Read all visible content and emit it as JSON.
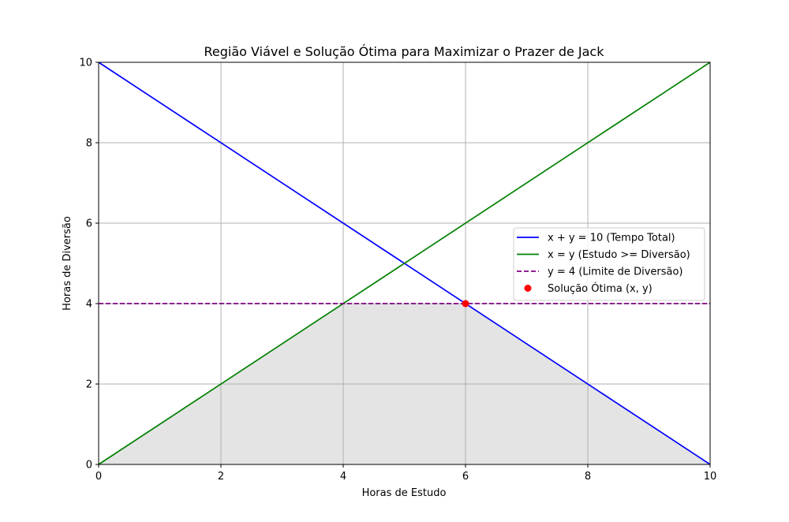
{
  "chart_data": {
    "type": "line",
    "title": "Região Viável e Solução Ótima para Maximizar o Prazer de Jack",
    "xlabel": "Horas de Estudo",
    "ylabel": "Horas de Diversão",
    "xlim": [
      0,
      10
    ],
    "ylim": [
      0,
      10
    ],
    "xticks": [
      0,
      2,
      4,
      6,
      8,
      10
    ],
    "yticks": [
      0,
      2,
      4,
      6,
      8,
      10
    ],
    "grid": true,
    "legend_position": "center-right",
    "feasible_region": {
      "color": "#e4e4e4",
      "polygon": [
        [
          0,
          0
        ],
        [
          4,
          4
        ],
        [
          6,
          4
        ],
        [
          10,
          0
        ]
      ]
    },
    "series": [
      {
        "name": "x + y = 10 (Tempo Total)",
        "style": "solid",
        "color": "#0000ff",
        "x": [
          0,
          10
        ],
        "y": [
          10,
          0
        ]
      },
      {
        "name": "x = y (Estudo >= Diversão)",
        "style": "solid",
        "color": "#008000",
        "x": [
          0,
          10
        ],
        "y": [
          0,
          10
        ]
      },
      {
        "name": "y = 4 (Limite de Diversão)",
        "style": "dashed",
        "color": "#800080",
        "x": [
          0,
          10
        ],
        "y": [
          4,
          4
        ]
      }
    ],
    "points": [
      {
        "name": "Solução Ótima (x, y)",
        "color": "#ff0000",
        "x": 6,
        "y": 4
      }
    ]
  }
}
